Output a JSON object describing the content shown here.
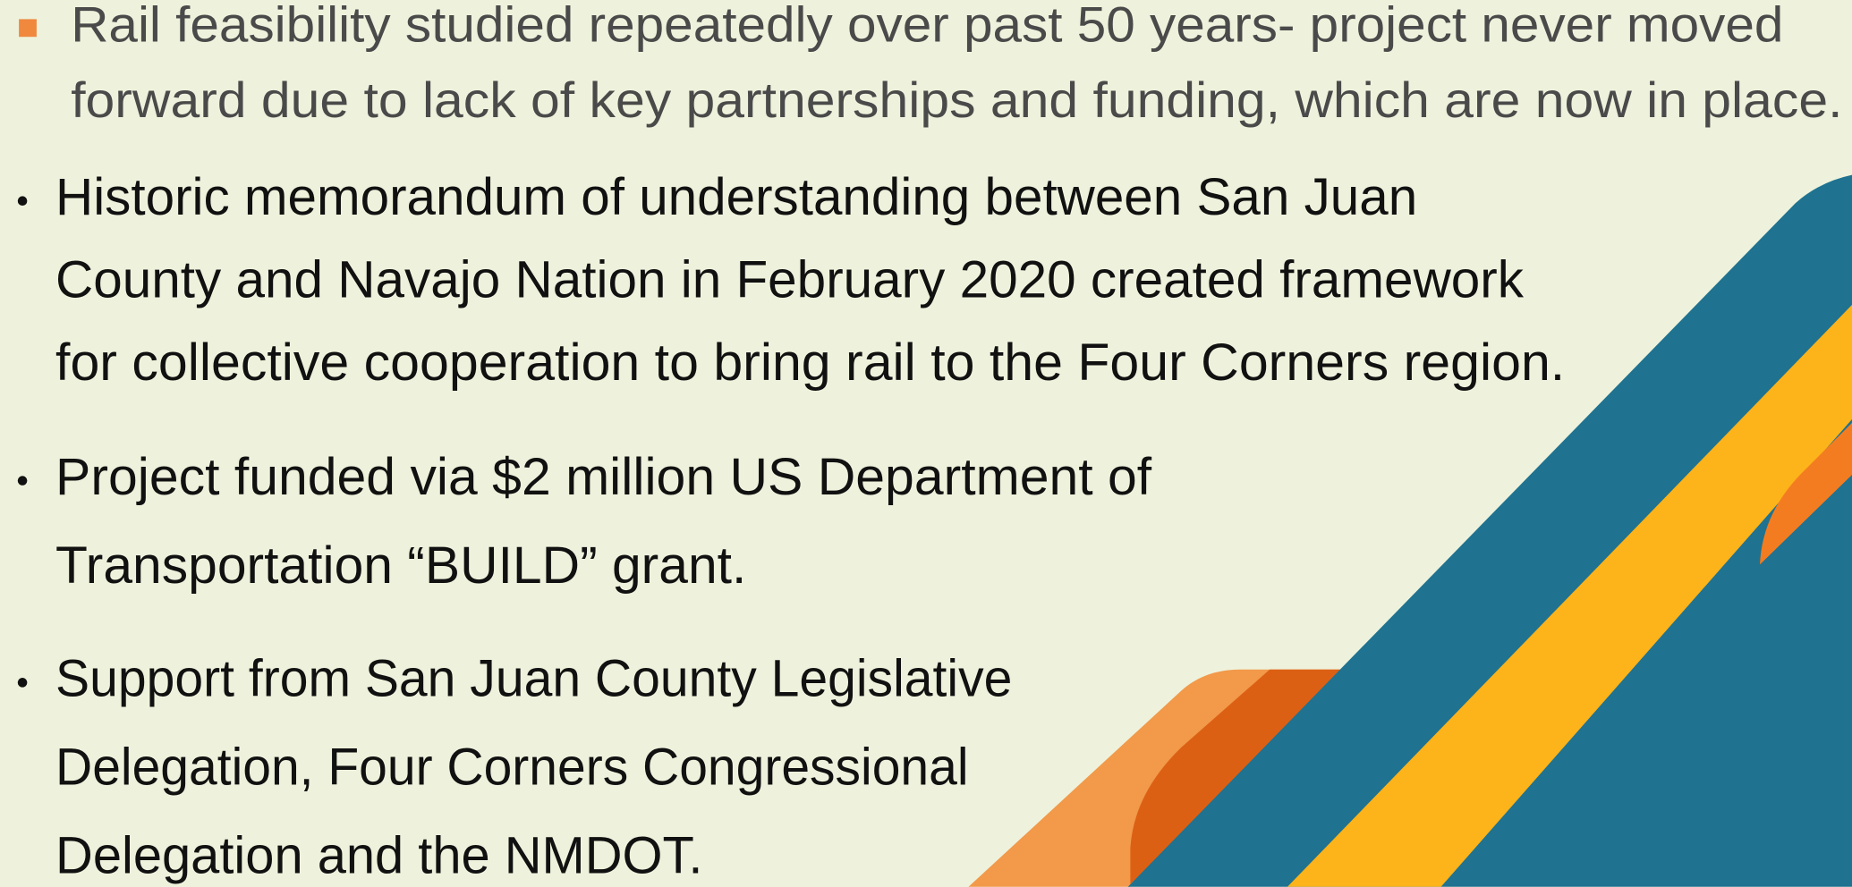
{
  "bullets": [
    {
      "lines": [
        "Rail feasibility studied repeatedly over past 50 years- project never moved",
        "forward due to lack of key partnerships and funding, which are now in place."
      ]
    },
    {
      "lines": [
        "Historic memorandum of understanding between San Juan",
        "County and Navajo Nation in February 2020 created framework",
        "for collective cooperation to bring rail to the Four Corners region."
      ]
    },
    {
      "lines": [
        "Project funded via $2 million US Department of",
        "Transportation “BUILD” grant."
      ]
    },
    {
      "lines": [
        "Support from San Juan County Legislative",
        "Delegation, Four Corners Congressional",
        "Delegation and the NMDOT."
      ]
    }
  ]
}
